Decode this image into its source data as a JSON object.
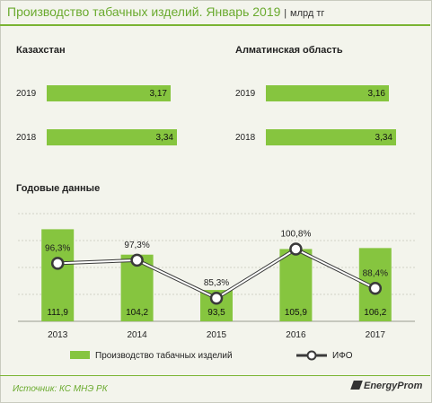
{
  "title": "Производство табачных изделий. Январь 2019",
  "unit": "млрд тг",
  "kazakhstan": {
    "title": "Казахстан",
    "rows": [
      {
        "year": "2019",
        "value": 3.17,
        "label": "3,17"
      },
      {
        "year": "2018",
        "value": 3.34,
        "label": "3,34"
      }
    ]
  },
  "almaty": {
    "title": "Алматинская  область",
    "rows": [
      {
        "year": "2019",
        "value": 3.16,
        "label": "3,16"
      },
      {
        "year": "2018",
        "value": 3.34,
        "label": "3,34"
      }
    ]
  },
  "section_title": "Годовые данные",
  "chart_data": {
    "type": "bar",
    "categories": [
      "2013",
      "2014",
      "2015",
      "2016",
      "2017"
    ],
    "series": [
      {
        "name": "Производство табачных изделий",
        "type": "bar",
        "values": [
          111.9,
          104.2,
          93.5,
          105.9,
          106.2
        ],
        "labels": [
          "111,9",
          "104,2",
          "93,5",
          "105,9",
          "106,2"
        ]
      },
      {
        "name": "ИФО",
        "type": "line",
        "values": [
          96.3,
          97.3,
          85.3,
          100.8,
          88.4
        ],
        "labels": [
          "96,3%",
          "97,3%",
          "85,3%",
          "100,8%",
          "88,4%"
        ]
      }
    ],
    "colors": {
      "bar": "#86c53f",
      "line": "#ffffff",
      "line_outline": "#3a3a3a"
    },
    "grid": true,
    "legend": "bottom"
  },
  "source": "Источник: КС МНЭ РК",
  "logo": "EnergyProm"
}
